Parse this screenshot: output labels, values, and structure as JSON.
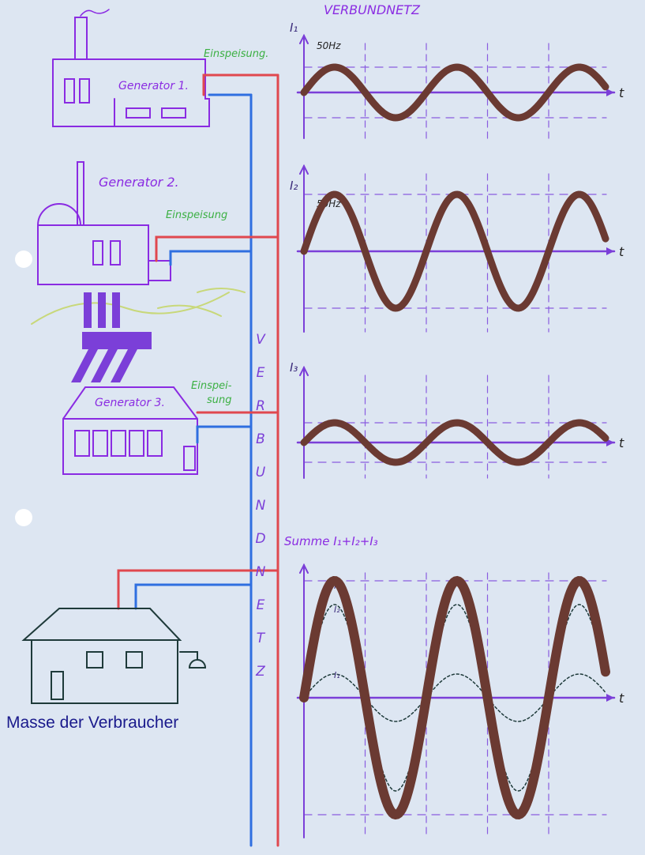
{
  "title": "VERBUNDNETZ",
  "grid_label": "VERBUNDNETZ",
  "generators": [
    {
      "label": "Generator 1.",
      "feed": "Einspeisung."
    },
    {
      "label": "Generator 2.",
      "feed": "Einspeisung"
    },
    {
      "label": "Generator 3.",
      "feed_lines": [
        "Einspei-",
        "sung"
      ]
    }
  ],
  "plots": [
    {
      "current": "I₁",
      "frequency": "50Hz",
      "axis_label": "t"
    },
    {
      "current": "I₂",
      "frequency": "50Hz",
      "axis_label": "t"
    },
    {
      "current": "I₃",
      "axis_label": "t"
    },
    {
      "label": "Summe I₁+I₂+I₃",
      "inner_labels": [
        "I₃",
        "I₂",
        "I₁"
      ],
      "axis_label": "t"
    }
  ],
  "consumer": "Masse der Verbraucher"
}
